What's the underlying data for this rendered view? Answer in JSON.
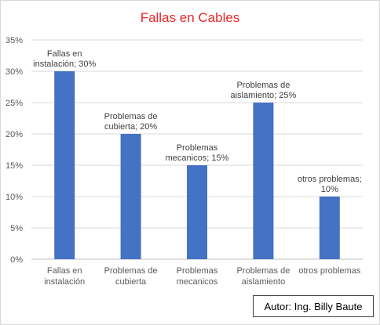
{
  "chart_data": {
    "type": "bar",
    "title": "Fallas en Cables",
    "xlabel": "",
    "ylabel": "",
    "ylim": [
      0,
      35
    ],
    "yticks": [
      "0%",
      "5%",
      "10%",
      "15%",
      "20%",
      "25%",
      "30%",
      "35%"
    ],
    "grid": true,
    "categories": [
      [
        "Fallas en",
        "instalación"
      ],
      [
        "Problemas de",
        "cubierta"
      ],
      [
        "Problemas",
        "mecanicos"
      ],
      [
        "Problemas de",
        "aislamiento"
      ],
      [
        "otros problemas"
      ]
    ],
    "values": [
      30,
      20,
      15,
      25,
      10
    ],
    "data_labels": [
      [
        "Fallas en",
        "instalación; 30%"
      ],
      [
        "Problemas de",
        "cubierta; 20%"
      ],
      [
        "Problemas",
        "mecanicos; 15%"
      ],
      [
        "Problemas de",
        "aislamiento; 25%"
      ],
      [
        "otros problemas;",
        "10%"
      ]
    ],
    "bar_color": "#4472c4",
    "title_color": "#e8262a"
  },
  "annotation": {
    "author": "Autor: Ing. Billy Baute"
  }
}
